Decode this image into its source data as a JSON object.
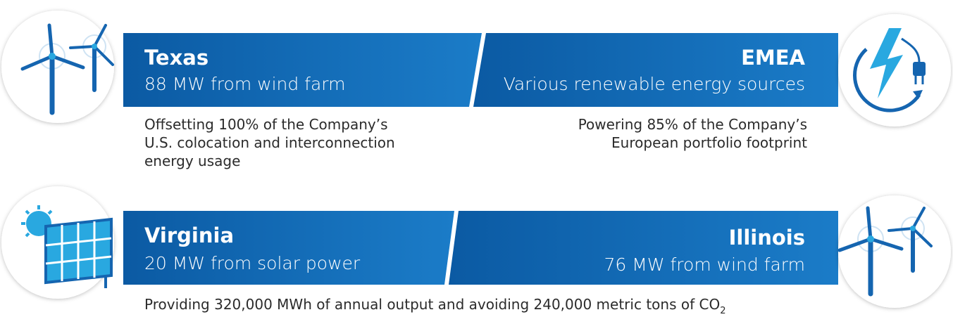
{
  "panels": [
    {
      "title": "Texas",
      "subtitle": "88 MW from wind farm",
      "description": [
        "Offsetting 100% of the Company’s",
        "U.S. colocation and interconnection",
        "energy usage"
      ]
    },
    {
      "title": "EMEA",
      "subtitle": "Various renewable energy sources",
      "description": [
        "Powering 85% of the Company’s",
        "European portfolio footprint"
      ]
    },
    {
      "title": "Virginia",
      "subtitle": "20 MW from solar power"
    },
    {
      "title": "Illinois",
      "subtitle": "76 MW from wind farm"
    }
  ],
  "footer": {
    "text": "Providing 320,000 MWh of annual output and avoiding 240,000 metric tons of CO",
    "subscript": "2"
  }
}
